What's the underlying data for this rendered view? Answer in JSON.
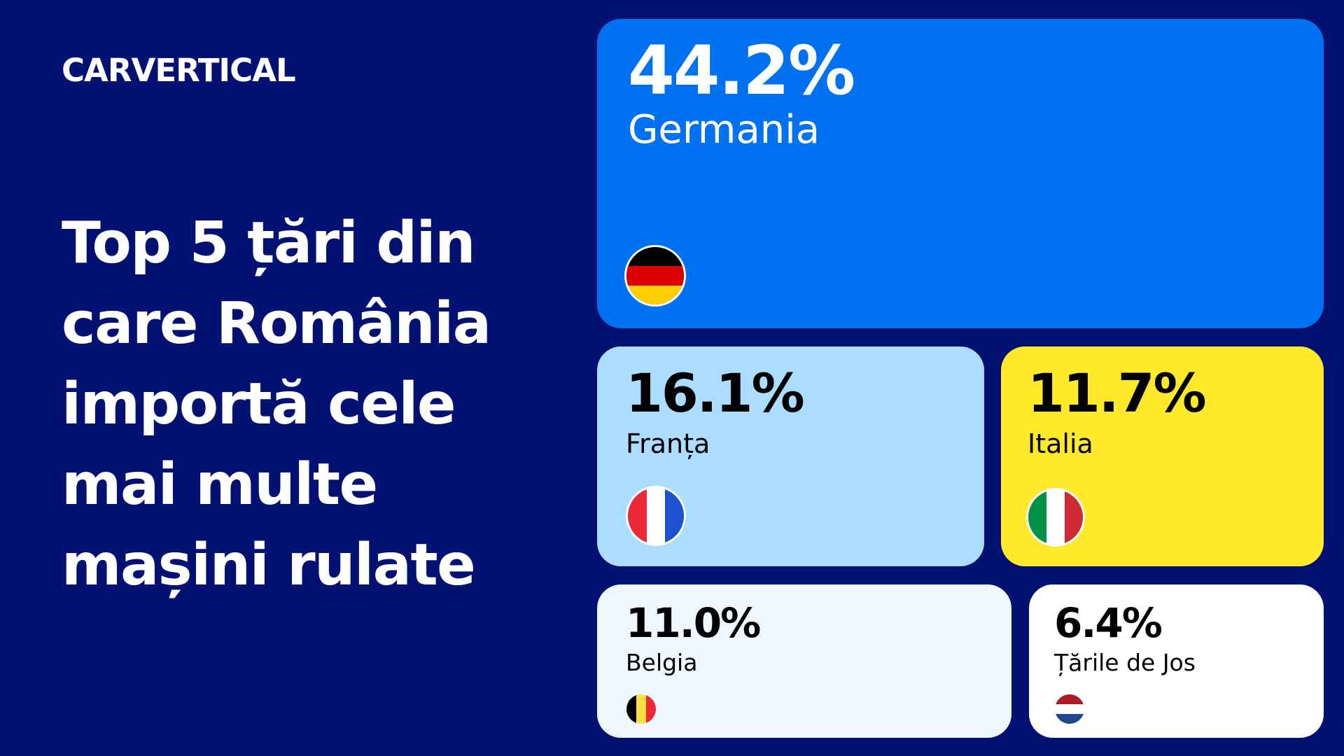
{
  "brand": {
    "logo_text": "CARVERTICAL"
  },
  "headline": {
    "lines": [
      "Top 5 țări din",
      "care România",
      "importă cele",
      "mai multe",
      "mașini rulate"
    ]
  },
  "colors": {
    "background": "#031173",
    "germany_tile": "#0072F1",
    "france_tile": "#ACDCFF",
    "italy_tile": "#FFE92A",
    "belgium_tile": "#EEF6FE",
    "netherlands_tile": "#FFFFFF"
  },
  "chart_data": {
    "type": "treemap",
    "title": "Top 5 țări din care România importă cele mai multe mașini rulate",
    "unit": "%",
    "items": [
      {
        "country": "Germania",
        "value": 44.2,
        "label": "44.2%",
        "flag_icon": "germany-flag-icon",
        "flag_colors": [
          "#000000",
          "#DD0000",
          "#FFCE00"
        ]
      },
      {
        "country": "Franța",
        "value": 16.1,
        "label": "16.1%",
        "flag_icon": "france-flag-icon",
        "flag_colors": [
          "#ED2939",
          "#FFFFFF",
          "#1E50D2"
        ]
      },
      {
        "country": "Italia",
        "value": 11.7,
        "label": "11.7%",
        "flag_icon": "italy-flag-icon",
        "flag_colors": [
          "#009246",
          "#FFFFFF",
          "#CE2B37"
        ]
      },
      {
        "country": "Belgia",
        "value": 11.0,
        "label": "11.0%",
        "flag_icon": "belgium-flag-icon",
        "flag_colors": [
          "#000000",
          "#FAE042",
          "#ED2939"
        ]
      },
      {
        "country": "Țările de Jos",
        "value": 6.4,
        "label": "6.4%",
        "flag_icon": "netherlands-flag-icon",
        "flag_colors": [
          "#AE1C28",
          "#FFFFFF",
          "#21468B"
        ]
      }
    ]
  }
}
